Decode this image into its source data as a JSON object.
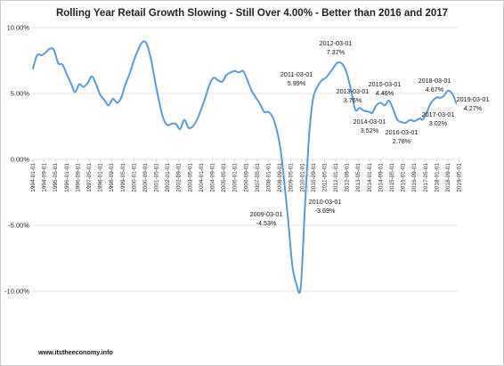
{
  "chart_data": {
    "type": "line",
    "title": "Rolling Year Retail Growth Slowing  - Still Over 4.00% -  Better than 2016 and 2017",
    "xlabel": "",
    "ylabel": "",
    "ylim": [
      -0.115,
      0.1
    ],
    "yticks": [
      {
        "value": 0.1,
        "label": "10.00%"
      },
      {
        "value": 0.05,
        "label": "5.00%"
      },
      {
        "value": 0.0,
        "label": "0.00%"
      },
      {
        "value": -0.05,
        "label": "-5.00%"
      },
      {
        "value": -0.1,
        "label": "-10.00%"
      }
    ],
    "x_tick_labels": [
      "1994-01-01",
      "1994-09-01",
      "1995-05-01",
      "1996-01-01",
      "1996-09-01",
      "1997-05-01",
      "1998-01-01",
      "1998-09-01",
      "1999-05-01",
      "2000-01-01",
      "2000-09-01",
      "2001-05-01",
      "2002-01-01",
      "2002-09-01",
      "2003-05-01",
      "2004-01-01",
      "2004-09-01",
      "2005-05-01",
      "2006-01-01",
      "2006-09-01",
      "2007-05-01",
      "2008-01-01",
      "2008-09-01",
      "2009-05-01",
      "2010-01-01",
      "2010-09-01",
      "2011-05-01",
      "2012-01-01",
      "2012-09-01",
      "2013-05-01",
      "2014-01-01",
      "2014-09-01",
      "2015-05-01",
      "2016-01-01",
      "2016-09-01",
      "2017-05-01",
      "2018-01-01",
      "2018-09-01",
      "2019-05-01"
    ],
    "grid": true,
    "line_color": "#5b9bd5",
    "series": [
      {
        "points": [
          [
            "1994-01",
            0.069
          ],
          [
            "1994-04",
            0.079
          ],
          [
            "1994-07",
            0.079
          ],
          [
            "1994-10",
            0.081
          ],
          [
            "1995-01",
            0.084
          ],
          [
            "1995-04",
            0.083
          ],
          [
            "1995-07",
            0.073
          ],
          [
            "1995-10",
            0.072
          ],
          [
            "1996-01",
            0.065
          ],
          [
            "1996-04",
            0.058
          ],
          [
            "1996-07",
            0.051
          ],
          [
            "1996-10",
            0.057
          ],
          [
            "1997-01",
            0.055
          ],
          [
            "1997-04",
            0.058
          ],
          [
            "1997-07",
            0.063
          ],
          [
            "1997-10",
            0.057
          ],
          [
            "1998-01",
            0.049
          ],
          [
            "1998-04",
            0.045
          ],
          [
            "1998-07",
            0.041
          ],
          [
            "1998-10",
            0.046
          ],
          [
            "1999-01",
            0.043
          ],
          [
            "1999-04",
            0.047
          ],
          [
            "1999-07",
            0.057
          ],
          [
            "1999-10",
            0.065
          ],
          [
            "2000-01",
            0.075
          ],
          [
            "2000-04",
            0.083
          ],
          [
            "2000-07",
            0.089
          ],
          [
            "2000-10",
            0.088
          ],
          [
            "2001-01",
            0.077
          ],
          [
            "2001-04",
            0.06
          ],
          [
            "2001-07",
            0.044
          ],
          [
            "2001-10",
            0.031
          ],
          [
            "2002-01",
            0.026
          ],
          [
            "2002-04",
            0.027
          ],
          [
            "2002-07",
            0.027
          ],
          [
            "2002-10",
            0.023
          ],
          [
            "2003-01",
            0.03
          ],
          [
            "2003-04",
            0.024
          ],
          [
            "2003-07",
            0.025
          ],
          [
            "2003-10",
            0.03
          ],
          [
            "2004-01",
            0.038
          ],
          [
            "2004-04",
            0.047
          ],
          [
            "2004-07",
            0.057
          ],
          [
            "2004-10",
            0.062
          ],
          [
            "2005-01",
            0.06
          ],
          [
            "2005-04",
            0.059
          ],
          [
            "2005-07",
            0.064
          ],
          [
            "2005-10",
            0.066
          ],
          [
            "2006-01",
            0.067
          ],
          [
            "2006-04",
            0.066
          ],
          [
            "2006-07",
            0.067
          ],
          [
            "2006-10",
            0.06
          ],
          [
            "2007-01",
            0.052
          ],
          [
            "2007-04",
            0.047
          ],
          [
            "2007-07",
            0.042
          ],
          [
            "2007-10",
            0.036
          ],
          [
            "2008-01",
            0.036
          ],
          [
            "2008-04",
            0.032
          ],
          [
            "2008-07",
            0.022
          ],
          [
            "2008-10",
            0.005
          ],
          [
            "2009-01",
            -0.025
          ],
          [
            "2009-03",
            -0.0453
          ],
          [
            "2009-06",
            -0.08
          ],
          [
            "2009-09",
            -0.095
          ],
          [
            "2009-12",
            -0.097
          ],
          [
            "2010-03",
            -0.0369
          ],
          [
            "2010-06",
            0.018
          ],
          [
            "2010-09",
            0.047
          ],
          [
            "2011-01",
            0.057
          ],
          [
            "2011-03",
            0.0599
          ],
          [
            "2011-06",
            0.062
          ],
          [
            "2011-09",
            0.066
          ],
          [
            "2012-01",
            0.072
          ],
          [
            "2012-03",
            0.0737
          ],
          [
            "2012-06",
            0.072
          ],
          [
            "2012-09",
            0.065
          ],
          [
            "2012-12",
            0.052
          ],
          [
            "2013-03",
            0.0376
          ],
          [
            "2013-06",
            0.039
          ],
          [
            "2013-09",
            0.037
          ],
          [
            "2014-01",
            0.036
          ],
          [
            "2014-03",
            0.0352
          ],
          [
            "2014-06",
            0.041
          ],
          [
            "2014-09",
            0.043
          ],
          [
            "2014-12",
            0.041
          ],
          [
            "2015-03",
            0.0446
          ],
          [
            "2015-06",
            0.038
          ],
          [
            "2015-09",
            0.03
          ],
          [
            "2016-01",
            0.028
          ],
          [
            "2016-03",
            0.0278
          ],
          [
            "2016-06",
            0.03
          ],
          [
            "2016-09",
            0.029
          ],
          [
            "2017-01",
            0.031
          ],
          [
            "2017-03",
            0.0302
          ],
          [
            "2017-06",
            0.036
          ],
          [
            "2017-09",
            0.043
          ],
          [
            "2018-01",
            0.047
          ],
          [
            "2018-03",
            0.0467
          ],
          [
            "2018-06",
            0.048
          ],
          [
            "2018-09",
            0.052
          ],
          [
            "2018-12",
            0.05
          ],
          [
            "2019-03",
            0.0427
          ]
        ]
      }
    ],
    "annotations": [
      {
        "date": "2009-03-01",
        "value": "-4.53%"
      },
      {
        "date": "2010-03-01",
        "value": "-3.69%"
      },
      {
        "date": "2011-03-01",
        "value": "5.99%"
      },
      {
        "date": "2012-03-01",
        "value": "7.37%"
      },
      {
        "date": "2013-03-01",
        "value": "3.76%"
      },
      {
        "date": "2014-03-01",
        "value": "3.52%"
      },
      {
        "date": "2015-03-01",
        "value": "4.46%"
      },
      {
        "date": "2016-03-01",
        "value": "2.78%"
      },
      {
        "date": "2017-03-01",
        "value": "3.02%"
      },
      {
        "date": "2018-03-01",
        "value": "4.67%"
      },
      {
        "date": "2019-03-01",
        "value": "4.27%"
      }
    ],
    "source": "www.itstheeconomy.info"
  }
}
